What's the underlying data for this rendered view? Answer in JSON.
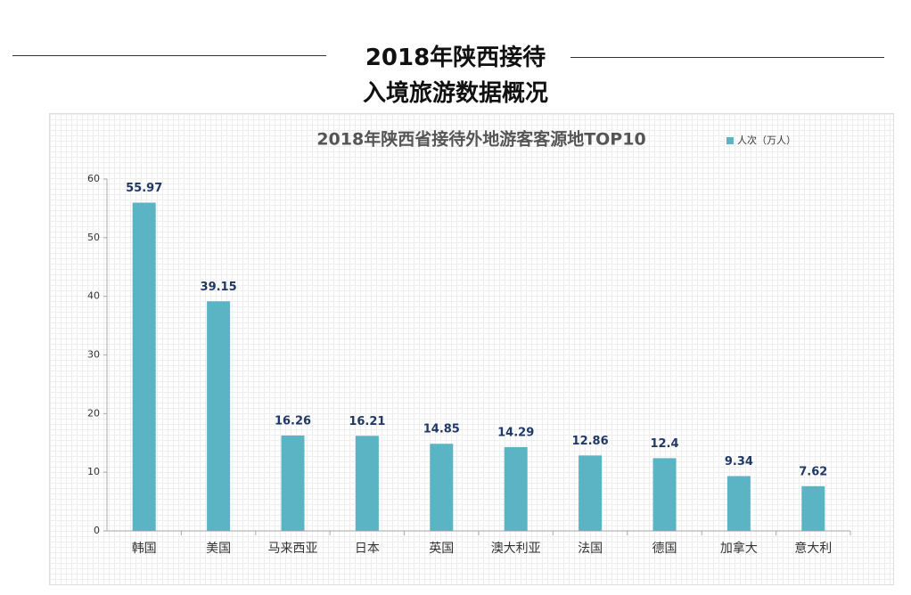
{
  "header": {
    "title_line1": "2018年陕西接待",
    "title_line2": "入境旅游数据概况"
  },
  "chart_data": {
    "type": "bar",
    "title": "2018年陕西省接待外地游客客源地TOP10",
    "categories": [
      "韩国",
      "美国",
      "马来西亚",
      "日本",
      "英国",
      "澳大利亚",
      "法国",
      "德国",
      "加拿大",
      "意大利"
    ],
    "series": [
      {
        "name": "人次（万人）",
        "color": "#5bb4c4",
        "values": [
          55.97,
          39.15,
          16.26,
          16.21,
          14.85,
          14.29,
          12.86,
          12.4,
          9.34,
          7.62
        ]
      }
    ],
    "ylim": [
      0,
      60
    ],
    "yticks": [
      0,
      10,
      20,
      30,
      40,
      50,
      60
    ],
    "legend": "top-right"
  }
}
